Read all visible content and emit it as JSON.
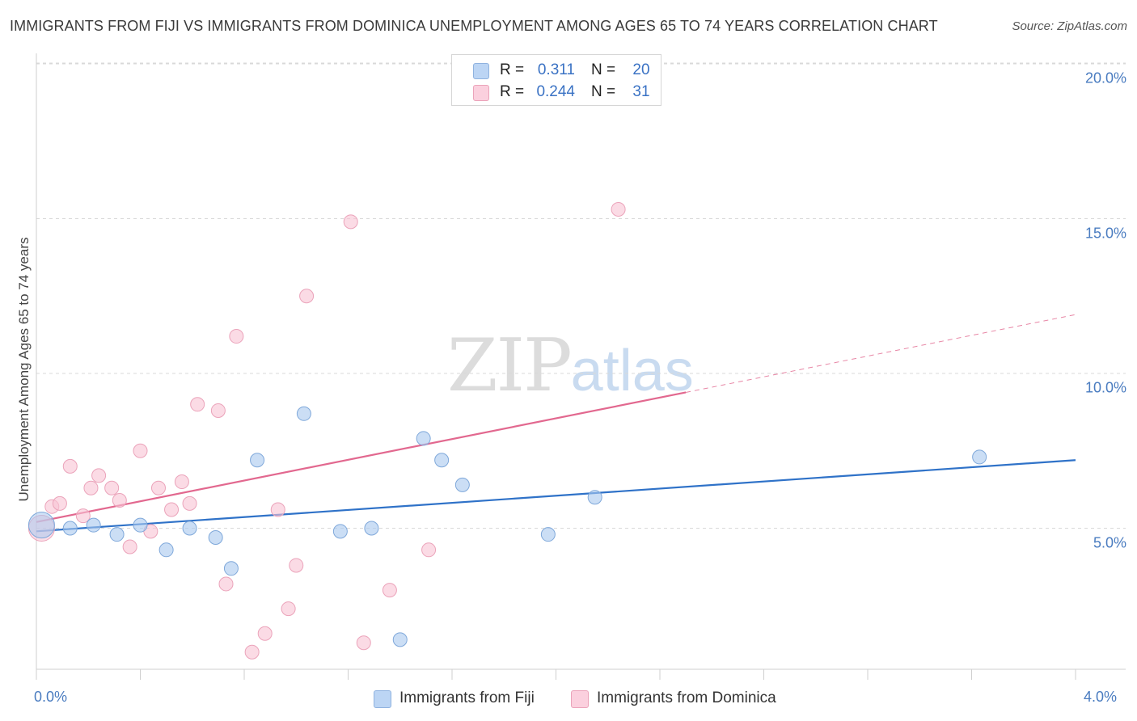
{
  "chart_data": {
    "type": "scatter",
    "title": "IMMIGRANTS FROM FIJI VS IMMIGRANTS FROM DOMINICA UNEMPLOYMENT AMONG AGES 65 TO 74 YEARS CORRELATION CHART",
    "source": "Source: ZipAtlas.com",
    "xlabel": "",
    "ylabel": "Unemployment Among Ages 65 to 74 years",
    "xlim": [
      0,
      4.0
    ],
    "ylim": [
      0,
      20.5
    ],
    "x_tick_labels": [
      "0.0%",
      "4.0%"
    ],
    "y_ticks": [
      5,
      10,
      15,
      20
    ],
    "y_tick_labels": [
      "5.0%",
      "10.0%",
      "15.0%",
      "20.0%"
    ],
    "grid": true,
    "watermark": {
      "zip": "ZIP",
      "atlas": "atlas"
    },
    "legend": {
      "r_label": "R =",
      "n_label": "N =",
      "entries": [
        {
          "r": "0.311",
          "n": "20"
        },
        {
          "r": "0.244",
          "n": "31"
        }
      ]
    },
    "series": [
      {
        "name": "Immigrants from Fiji",
        "color": "#a9c8ef",
        "stroke": "#7fa8da",
        "line_color": "#2f72c8",
        "trend": {
          "x0": 0.0,
          "y0": 4.9,
          "x1": 4.0,
          "y1": 7.2,
          "dash_from": null
        },
        "points": [
          {
            "x": 0.02,
            "y": 5.1,
            "big": true
          },
          {
            "x": 0.13,
            "y": 5.0
          },
          {
            "x": 0.22,
            "y": 5.1
          },
          {
            "x": 0.31,
            "y": 4.8
          },
          {
            "x": 0.4,
            "y": 5.1
          },
          {
            "x": 0.5,
            "y": 4.3
          },
          {
            "x": 0.59,
            "y": 5.0
          },
          {
            "x": 0.69,
            "y": 4.7
          },
          {
            "x": 0.75,
            "y": 3.7
          },
          {
            "x": 0.85,
            "y": 7.2
          },
          {
            "x": 1.03,
            "y": 8.7
          },
          {
            "x": 1.17,
            "y": 4.9
          },
          {
            "x": 1.29,
            "y": 5.0
          },
          {
            "x": 1.4,
            "y": 1.4
          },
          {
            "x": 1.49,
            "y": 7.9
          },
          {
            "x": 1.56,
            "y": 7.2
          },
          {
            "x": 1.64,
            "y": 6.4
          },
          {
            "x": 1.97,
            "y": 4.8
          },
          {
            "x": 2.15,
            "y": 6.0
          },
          {
            "x": 3.63,
            "y": 7.3
          }
        ]
      },
      {
        "name": "Immigrants from Dominica",
        "color": "#f8c3d3",
        "stroke": "#eba3ba",
        "line_color": "#e2688f",
        "trend": {
          "x0": 0.0,
          "y0": 5.2,
          "x1": 4.0,
          "y1": 11.9,
          "dash_from": 2.5
        },
        "points": [
          {
            "x": 0.02,
            "y": 5.0,
            "big": true
          },
          {
            "x": 0.06,
            "y": 5.7
          },
          {
            "x": 0.09,
            "y": 5.8
          },
          {
            "x": 0.13,
            "y": 7.0
          },
          {
            "x": 0.18,
            "y": 5.4
          },
          {
            "x": 0.21,
            "y": 6.3
          },
          {
            "x": 0.24,
            "y": 6.7
          },
          {
            "x": 0.29,
            "y": 6.3
          },
          {
            "x": 0.32,
            "y": 5.9
          },
          {
            "x": 0.36,
            "y": 4.4
          },
          {
            "x": 0.4,
            "y": 7.5
          },
          {
            "x": 0.44,
            "y": 4.9
          },
          {
            "x": 0.47,
            "y": 6.3
          },
          {
            "x": 0.52,
            "y": 5.6
          },
          {
            "x": 0.56,
            "y": 6.5
          },
          {
            "x": 0.59,
            "y": 5.8
          },
          {
            "x": 0.62,
            "y": 9.0
          },
          {
            "x": 0.7,
            "y": 8.8
          },
          {
            "x": 0.73,
            "y": 3.2
          },
          {
            "x": 0.77,
            "y": 11.2
          },
          {
            "x": 0.83,
            "y": 1.0
          },
          {
            "x": 0.88,
            "y": 1.6
          },
          {
            "x": 0.93,
            "y": 5.6
          },
          {
            "x": 0.97,
            "y": 2.4
          },
          {
            "x": 1.0,
            "y": 3.8
          },
          {
            "x": 1.04,
            "y": 12.5
          },
          {
            "x": 1.21,
            "y": 14.9
          },
          {
            "x": 1.26,
            "y": 1.3
          },
          {
            "x": 1.36,
            "y": 3.0
          },
          {
            "x": 1.51,
            "y": 4.3
          },
          {
            "x": 2.24,
            "y": 15.3
          }
        ]
      }
    ]
  }
}
